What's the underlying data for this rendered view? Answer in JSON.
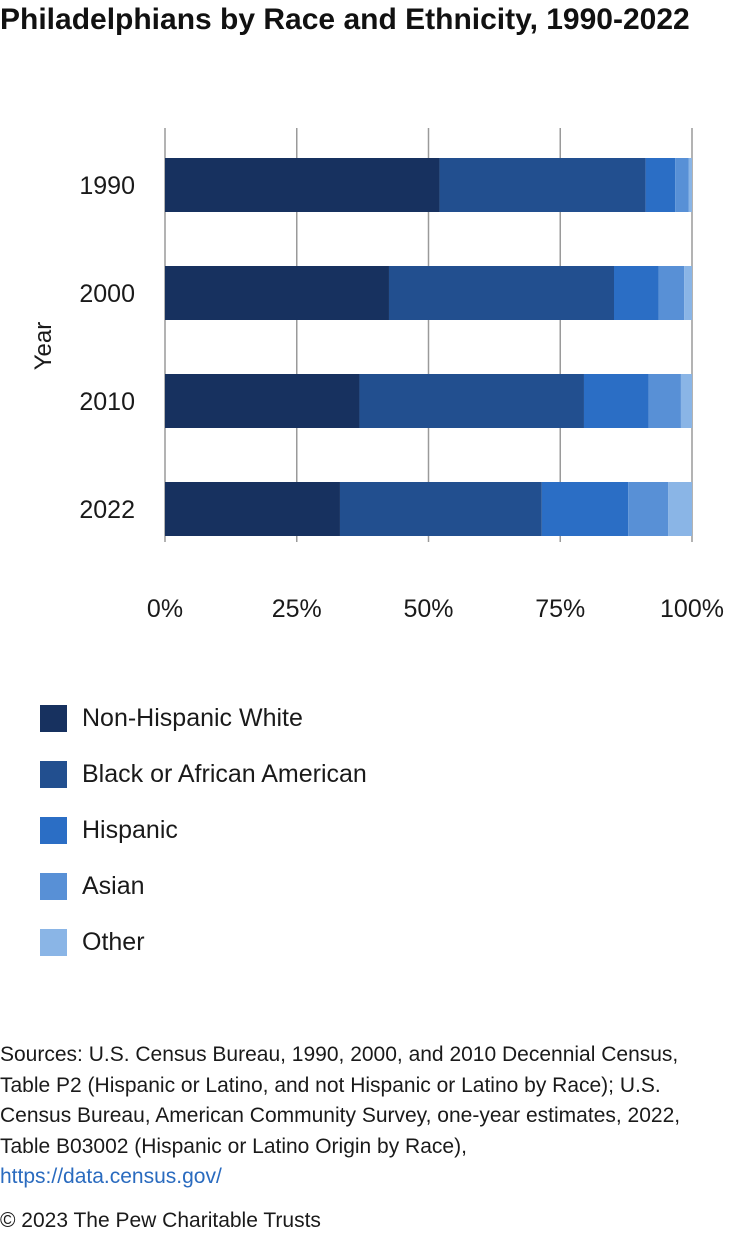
{
  "chart_data": {
    "type": "bar",
    "orientation": "horizontal",
    "stacked": true,
    "title": "Philadelphians by Race and Ethnicity, 1990-2022",
    "ylabel": "Year",
    "xlabel": "",
    "categories": [
      "1990",
      "2000",
      "2010",
      "2022"
    ],
    "x_ticks": [
      "0%",
      "25%",
      "50%",
      "75%",
      "100%"
    ],
    "xlim": [
      0,
      100
    ],
    "grid": true,
    "legend_position": "bottom",
    "series": [
      {
        "name": "Non-Hispanic White",
        "color": "#17315f",
        "values": [
          52.1,
          42.5,
          36.9,
          33.2
        ]
      },
      {
        "name": "Black or African American",
        "color": "#224f8f",
        "values": [
          39.1,
          42.7,
          42.6,
          38.3
        ]
      },
      {
        "name": "Hispanic",
        "color": "#2b6ec5",
        "values": [
          5.6,
          8.5,
          12.3,
          16.4
        ]
      },
      {
        "name": "Asian",
        "color": "#5890d6",
        "values": [
          2.6,
          4.8,
          6.1,
          7.6
        ]
      },
      {
        "name": "Other",
        "color": "#8ab5e6",
        "values": [
          0.6,
          1.5,
          2.1,
          4.5
        ]
      }
    ]
  },
  "source": {
    "text": "Sources: U.S. Census Bureau, 1990, 2000, and 2010 Decennial Census, Table P2 (Hispanic or Latino, and not Hispanic or Latino by Race); U.S. Census Bureau, American Community Survey, one-year estimates, 2022, Table B03002 (Hispanic or Latino Origin by Race),",
    "link": "https://data.census.gov/"
  },
  "copyright": "© 2023 The Pew Charitable Trusts"
}
